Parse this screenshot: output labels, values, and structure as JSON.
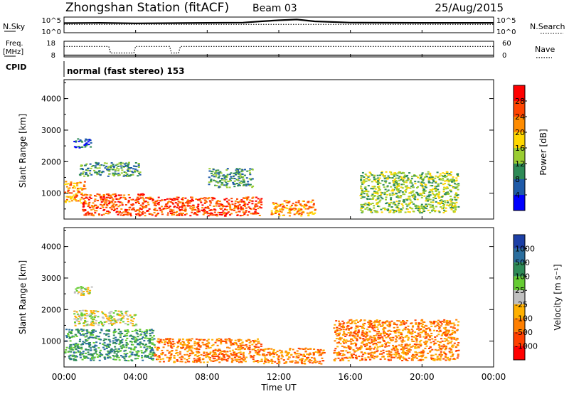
{
  "header": {
    "station": "Zhongshan Station (fitACF)",
    "beam": "Beam 03",
    "date": "25/Aug/2015"
  },
  "top_panels": {
    "nsky_label": "N.Sky",
    "nsearch_label": "N.Search",
    "nsky_ticks": [
      "10^5",
      "10^0"
    ],
    "nsearch_ticks": [
      "10^5",
      "10^0"
    ],
    "freq_label": "Freq.",
    "freq_unit": "[MHz]",
    "freq_ticks": [
      "18",
      "8"
    ],
    "nave_label": "Nave",
    "nave_ticks": [
      "60",
      "0"
    ],
    "cpid_label": "CPID",
    "cpid_text": "normal (fast stereo) 153"
  },
  "axes": {
    "ylabel": "Slant Range [km]",
    "yticks": [
      "4000",
      "3000",
      "2000",
      "1000"
    ],
    "xticks": [
      "00:00",
      "04:00",
      "08:00",
      "12:00",
      "16:00",
      "20:00",
      "00:00"
    ],
    "xlabel": "Time UT"
  },
  "power_scale": {
    "label": "Power [dB]",
    "ticks": [
      "28",
      "24",
      "20",
      "16",
      "12",
      "8",
      "4"
    ],
    "colors": [
      "#ff0000",
      "#ff4500",
      "#ff8c00",
      "#ffd700",
      "#9acd32",
      "#2e8b57",
      "#1e5aa8",
      "#0000ff"
    ]
  },
  "velocity_scale": {
    "label": "Velocity [m s⁻¹]",
    "ticks": [
      "1000",
      "500",
      "100",
      "25",
      "-25",
      "-100",
      "-500",
      "-1000"
    ],
    "colors": [
      "#1c3fa6",
      "#2a6e9e",
      "#2e8b57",
      "#66cc33",
      "#c0c0c0",
      "#ffb000",
      "#ff7f00",
      "#ff4000",
      "#ff0000"
    ]
  },
  "chart_data": [
    {
      "type": "line",
      "xlabel": "Time UT",
      "xlim": [
        0,
        24
      ],
      "series": [
        {
          "name": "N.Sky",
          "x": [
            0,
            2,
            4,
            6,
            8,
            10,
            11,
            12,
            13,
            14,
            16,
            20,
            24
          ],
          "y": [
            3.2,
            3.3,
            3.1,
            3.2,
            3.3,
            3.4,
            3.9,
            4.3,
            4.6,
            3.9,
            3.4,
            3.3,
            3.3
          ]
        },
        {
          "name": "N.Search",
          "x": [
            0,
            24
          ],
          "y": [
            2.7,
            2.7
          ]
        }
      ]
    },
    {
      "type": "line",
      "xlabel": "Time UT",
      "xlim": [
        0,
        24
      ],
      "series": [
        {
          "name": "Freq.",
          "x": [
            0,
            24
          ],
          "y": [
            10,
            10
          ]
        },
        {
          "name": "Nave",
          "x": [
            0,
            2.5,
            2.6,
            3.9,
            4.0,
            5.9,
            6.0,
            6.4,
            6.5,
            24
          ],
          "y": [
            40,
            40,
            15,
            15,
            40,
            40,
            15,
            15,
            40,
            40
          ]
        }
      ]
    },
    {
      "type": "heatmap",
      "title": "",
      "xlabel": "",
      "ylabel": "Slant Range [km]",
      "xlim": [
        0,
        24
      ],
      "ylim": [
        180,
        4600
      ],
      "colorbar_label": "Power [dB]",
      "regions": [
        {
          "t0": 0.0,
          "t1": 1.2,
          "r0": 700,
          "r1": 1400,
          "level": 5
        },
        {
          "t0": 1.0,
          "t1": 4.5,
          "r0": 300,
          "r1": 1000,
          "level": 6
        },
        {
          "t0": 4.5,
          "t1": 11.0,
          "r0": 300,
          "r1": 900,
          "level": 6
        },
        {
          "t0": 11.5,
          "t1": 14.0,
          "r0": 300,
          "r1": 800,
          "level": 5
        },
        {
          "t0": 0.5,
          "t1": 1.5,
          "r0": 2450,
          "r1": 2750,
          "level": 1
        },
        {
          "t0": 0.8,
          "t1": 4.2,
          "r0": 1550,
          "r1": 2000,
          "level": 2
        },
        {
          "t0": 8.0,
          "t1": 10.5,
          "r0": 1200,
          "r1": 1800,
          "level": 2
        },
        {
          "t0": 16.5,
          "t1": 22.0,
          "r0": 400,
          "r1": 1700,
          "level": 3
        }
      ]
    },
    {
      "type": "heatmap",
      "title": "",
      "xlabel": "Time UT",
      "ylabel": "Slant Range [km]",
      "xlim": [
        0,
        24
      ],
      "ylim": [
        180,
        4600
      ],
      "colorbar_label": "Velocity [m s⁻¹]",
      "regions": [
        {
          "t0": 0.0,
          "t1": 5.0,
          "r0": 400,
          "r1": 1400,
          "level": 2
        },
        {
          "t0": 5.0,
          "t1": 11.0,
          "r0": 350,
          "r1": 1100,
          "level": 6
        },
        {
          "t0": 11.0,
          "t1": 14.5,
          "r0": 300,
          "r1": 800,
          "level": 6
        },
        {
          "t0": 0.5,
          "t1": 4.0,
          "r0": 1500,
          "r1": 2000,
          "level": 4
        },
        {
          "t0": 0.5,
          "t1": 1.5,
          "r0": 2450,
          "r1": 2750,
          "level": 4
        },
        {
          "t0": 15.0,
          "t1": 22.0,
          "r0": 400,
          "r1": 1700,
          "level": 6
        }
      ]
    }
  ]
}
